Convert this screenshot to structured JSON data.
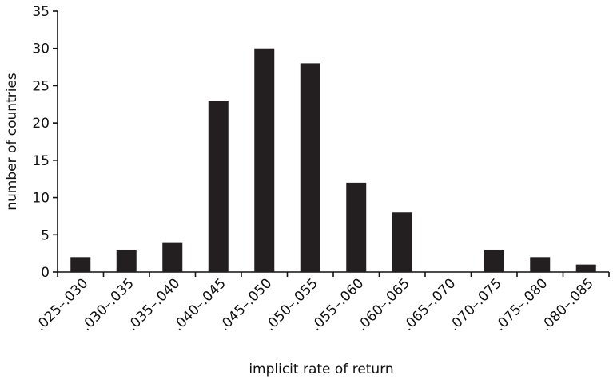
{
  "chart_data": {
    "type": "bar",
    "categories": [
      ".025–.030",
      ".030–.035",
      ".035–.040",
      ".040–.045",
      ".045–.050",
      ".050–.055",
      ".055–.060",
      ".060–.065",
      ".065–.070",
      ".070–.075",
      ".075–.080",
      ".080–.085"
    ],
    "values": [
      2,
      3,
      4,
      23,
      30,
      28,
      12,
      8,
      0,
      3,
      2,
      1
    ],
    "xlabel": "implicit rate of return",
    "ylabel": "number of countries",
    "ylim": [
      0,
      35
    ],
    "yticks": [
      0,
      5,
      10,
      15,
      20,
      25,
      30,
      35
    ],
    "grid": false,
    "bar_color": "#231f20"
  }
}
